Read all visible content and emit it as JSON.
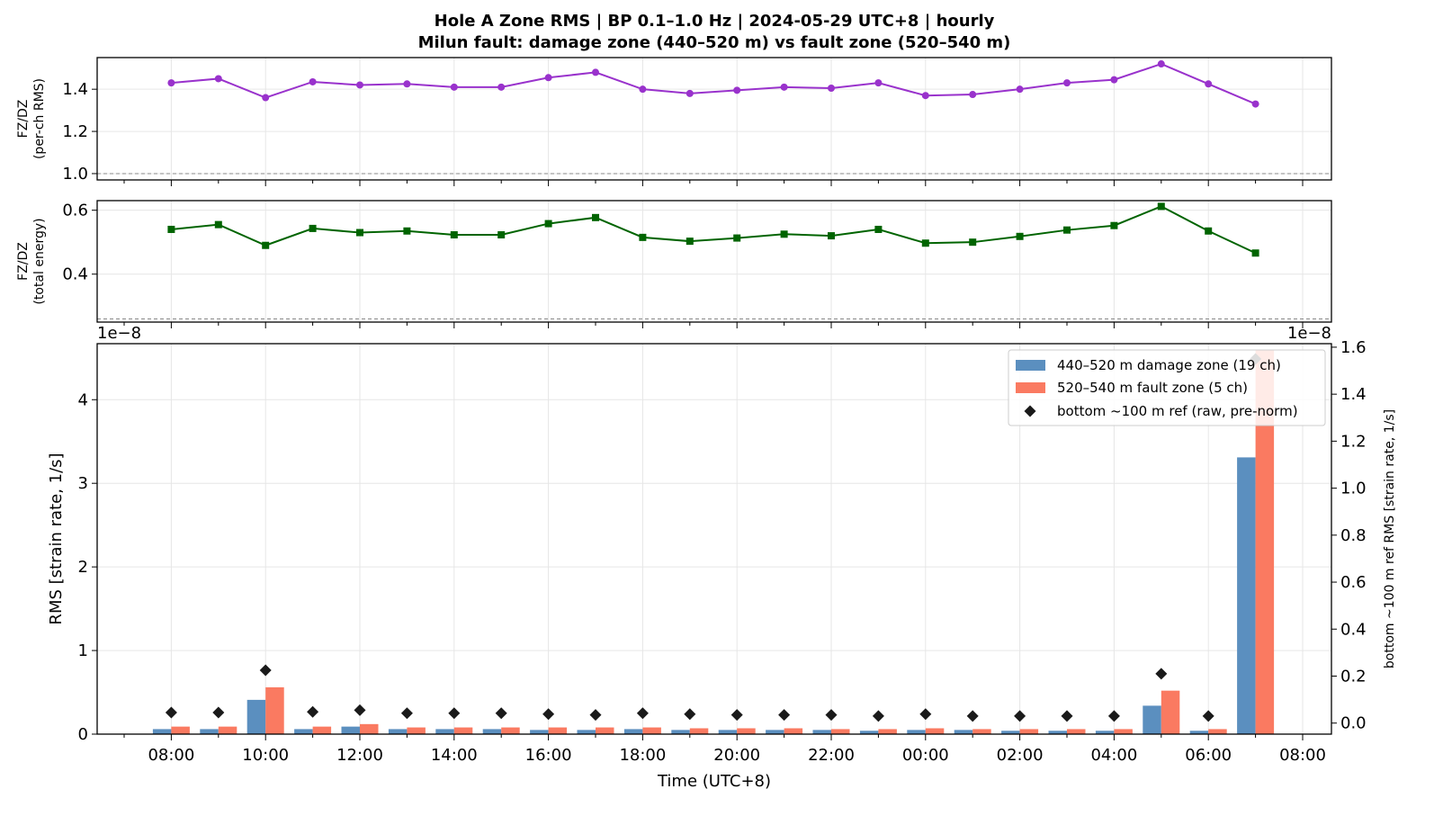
{
  "title_line1": "Hole A Zone RMS  |  BP 0.1–1.0 Hz  |  2024-05-29 UTC+8  |  hourly",
  "title_line2": "Milun fault: damage zone (440–520 m) vs fault zone (520–540 m)",
  "hours": [
    "07:00",
    "08:00",
    "09:00",
    "10:00",
    "11:00",
    "12:00",
    "13:00",
    "14:00",
    "15:00",
    "16:00",
    "17:00",
    "18:00",
    "19:00",
    "20:00",
    "21:00",
    "22:00",
    "23:00",
    "00:00",
    "01:00",
    "02:00",
    "03:00",
    "04:00",
    "05:00",
    "06:00",
    "07:00",
    "08:00"
  ],
  "x_tick_labels": [
    "08:00",
    "10:00",
    "12:00",
    "14:00",
    "16:00",
    "18:00",
    "20:00",
    "22:00",
    "00:00",
    "02:00",
    "04:00",
    "06:00",
    "08:00"
  ],
  "chart_data": [
    {
      "type": "line",
      "ylabel": "FZ/DZ\n(per-ch RMS)",
      "ylim": [
        0.97,
        1.55
      ],
      "y_ticks": [
        "1.0",
        "1.2",
        "1.4"
      ],
      "reference_line": 1.0,
      "grid": true,
      "color": "#9932cc",
      "marker": "circle",
      "x": [
        "08:00",
        "09:00",
        "10:00",
        "11:00",
        "12:00",
        "13:00",
        "14:00",
        "15:00",
        "16:00",
        "17:00",
        "18:00",
        "19:00",
        "20:00",
        "21:00",
        "22:00",
        "23:00",
        "00:00",
        "01:00",
        "02:00",
        "03:00",
        "04:00",
        "05:00",
        "06:00",
        "07:00"
      ],
      "values": [
        1.43,
        1.45,
        1.36,
        1.435,
        1.42,
        1.425,
        1.41,
        1.41,
        1.455,
        1.48,
        1.4,
        1.38,
        1.395,
        1.41,
        1.405,
        1.43,
        1.37,
        1.375,
        1.4,
        1.43,
        1.445,
        1.52,
        1.425,
        1.33
      ]
    },
    {
      "type": "line",
      "ylabel": "FZ/DZ\n(total energy)",
      "ylim": [
        0.25,
        0.63
      ],
      "y_ticks": [
        "0.4",
        "0.6"
      ],
      "reference_line": 0.26,
      "grid": true,
      "color": "#006400",
      "marker": "square",
      "x": [
        "08:00",
        "09:00",
        "10:00",
        "11:00",
        "12:00",
        "13:00",
        "14:00",
        "15:00",
        "16:00",
        "17:00",
        "18:00",
        "19:00",
        "20:00",
        "21:00",
        "22:00",
        "23:00",
        "00:00",
        "01:00",
        "02:00",
        "03:00",
        "04:00",
        "05:00",
        "06:00",
        "07:00"
      ],
      "values": [
        0.54,
        0.555,
        0.49,
        0.543,
        0.53,
        0.535,
        0.523,
        0.523,
        0.558,
        0.577,
        0.515,
        0.503,
        0.513,
        0.525,
        0.52,
        0.54,
        0.497,
        0.5,
        0.518,
        0.538,
        0.552,
        0.612,
        0.535,
        0.466
      ]
    },
    {
      "type": "bar",
      "xlabel": "Time (UTC+8)",
      "ylabel": "RMS  [strain rate, 1/s]",
      "y2label": "bottom ~100 m ref RMS  [strain rate, 1/s]",
      "offset_text_left": "1e−8",
      "offset_text_right": "1e−8",
      "ylim": [
        0,
        4.67
      ],
      "y_ticks": [
        "0",
        "1",
        "2",
        "3",
        "4"
      ],
      "y2lim": [
        -0.047,
        1.615
      ],
      "y2_ticks": [
        "0.0",
        "0.2",
        "0.4",
        "0.6",
        "0.8",
        "1.0",
        "1.2",
        "1.4",
        "1.6"
      ],
      "grid": true,
      "legend_position": "top-right",
      "x": [
        "08:00",
        "09:00",
        "10:00",
        "11:00",
        "12:00",
        "13:00",
        "14:00",
        "15:00",
        "16:00",
        "17:00",
        "18:00",
        "19:00",
        "20:00",
        "21:00",
        "22:00",
        "23:00",
        "00:00",
        "01:00",
        "02:00",
        "03:00",
        "04:00",
        "05:00",
        "06:00",
        "07:00"
      ],
      "series": [
        {
          "name": "440–520 m  damage zone (19 ch)",
          "color": "#5b8fbf",
          "axis": "left",
          "values": [
            0.06,
            0.06,
            0.41,
            0.06,
            0.09,
            0.06,
            0.06,
            0.06,
            0.05,
            0.05,
            0.06,
            0.05,
            0.05,
            0.05,
            0.05,
            0.04,
            0.05,
            0.05,
            0.04,
            0.04,
            0.04,
            0.34,
            0.04,
            3.31
          ]
        },
        {
          "name": "520–540 m  fault zone (5 ch)",
          "color": "#fa7a61",
          "axis": "left",
          "values": [
            0.09,
            0.09,
            0.56,
            0.09,
            0.12,
            0.08,
            0.08,
            0.08,
            0.08,
            0.08,
            0.08,
            0.07,
            0.07,
            0.07,
            0.06,
            0.06,
            0.07,
            0.06,
            0.06,
            0.06,
            0.06,
            0.52,
            0.06,
            4.6
          ]
        },
        {
          "name": "bottom ~100 m ref (raw, pre-norm)",
          "color": "#1a1a1a",
          "axis": "right",
          "marker": "diamond",
          "values": [
            0.045,
            0.045,
            0.225,
            0.048,
            0.055,
            0.042,
            0.042,
            0.042,
            0.038,
            0.035,
            0.042,
            0.038,
            0.035,
            0.035,
            0.035,
            0.03,
            0.038,
            0.03,
            0.03,
            0.03,
            0.03,
            0.21,
            0.03,
            1.55
          ]
        }
      ]
    }
  ]
}
